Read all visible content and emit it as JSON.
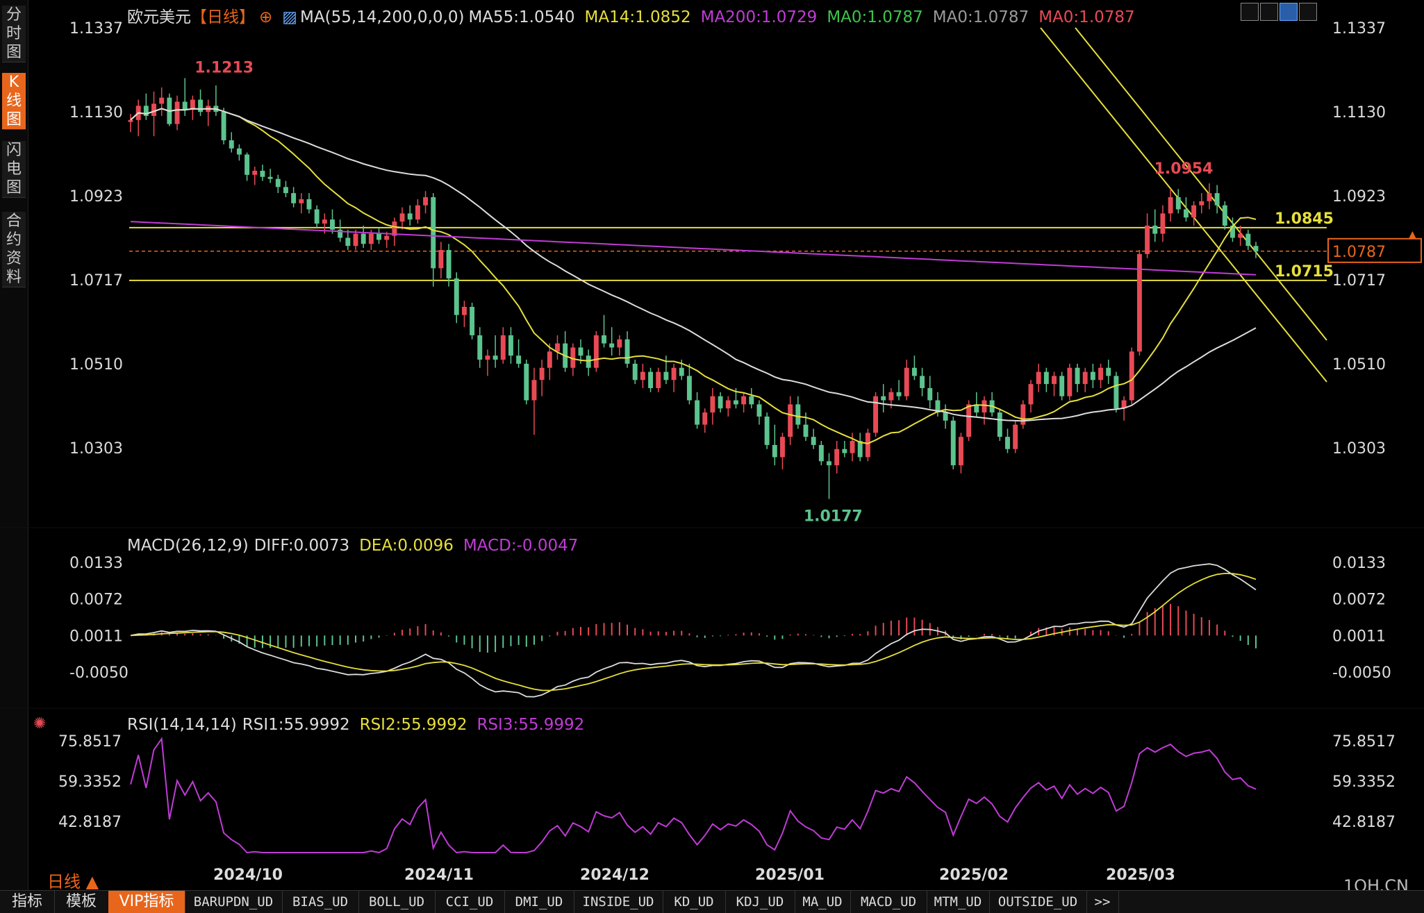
{
  "sidebar": {
    "tabs": [
      {
        "label": "分时图",
        "active": false
      },
      {
        "label": "K线图",
        "active": true
      },
      {
        "label": "闪电图",
        "active": false
      },
      {
        "label": "合约资料",
        "active": false
      }
    ]
  },
  "header": {
    "symbol": "欧元美元",
    "period_tag": "【日线】",
    "ma_params": "MA(55,14,200,0,0,0)",
    "ma55": "MA55:1.0540",
    "ma14": "MA14:1.0852",
    "ma200": "MA200:1.0729",
    "ma0_a": "MA0:1.0787",
    "ma0_b": "MA0:1.0787",
    "ma0_c": "MA0:1.0787"
  },
  "toolbar": {
    "icons": [
      "grid-icon",
      "bars-icon",
      "draw-icon",
      "export-icon"
    ]
  },
  "colors": {
    "up": "#e84a55",
    "down": "#5cc48e",
    "ma14": "#e6df3c",
    "ma55": "#dddddd",
    "ma200": "#c03cd6",
    "orange": "#e8661c",
    "ma0_green": "#3cc44a",
    "ma0_grey": "#999999",
    "ma0_red": "#e84a55"
  },
  "price_axis": {
    "ticks": [
      "1.1337",
      "1.1130",
      "1.0923",
      "1.0717",
      "1.0510",
      "1.0303"
    ],
    "current_price": "1.0787"
  },
  "annotations": {
    "high": "1.1213",
    "low": "1.0177",
    "recent_high": "1.0954",
    "level_upper": "1.0845",
    "level_lower": "1.0715"
  },
  "macd": {
    "title": "MACD(26,12,9)",
    "diff": "DIFF:0.0073",
    "dea": "DEA:0.0096",
    "macd": "MACD:-0.0047",
    "ticks": [
      "0.0133",
      "0.0072",
      "0.0011",
      "-0.0050"
    ]
  },
  "rsi": {
    "title": "RSI(14,14,14)",
    "rsi1": "RSI1:55.9992",
    "rsi2": "RSI2:55.9992",
    "rsi3": "RSI3:55.9992",
    "ticks": [
      "75.8517",
      "59.3352",
      "42.8187"
    ]
  },
  "x_axis": {
    "labels": [
      "2024/10",
      "2024/11",
      "2024/12",
      "2025/01",
      "2025/02",
      "2025/03"
    ]
  },
  "footer": {
    "period": "日线 ▲",
    "watermark": "1QH.CN",
    "tabs": [
      {
        "label": "指标",
        "active": false,
        "cn": true
      },
      {
        "label": "模板",
        "active": false,
        "cn": true
      },
      {
        "label": "VIP指标",
        "active": true,
        "cn": true
      },
      {
        "label": "BARUPDN_UD",
        "active": false
      },
      {
        "label": "BIAS_UD",
        "active": false
      },
      {
        "label": "BOLL_UD",
        "active": false
      },
      {
        "label": "CCI_UD",
        "active": false
      },
      {
        "label": "DMI_UD",
        "active": false
      },
      {
        "label": "INSIDE_UD",
        "active": false
      },
      {
        "label": "KD_UD",
        "active": false
      },
      {
        "label": "KDJ_UD",
        "active": false
      },
      {
        "label": "MA_UD",
        "active": false
      },
      {
        "label": "MACD_UD",
        "active": false
      },
      {
        "label": "MTM_UD",
        "active": false
      },
      {
        "label": "OUTSIDE_UD",
        "active": false
      },
      {
        "label": ">>",
        "active": false
      }
    ]
  },
  "chart_data": {
    "type": "candlestick",
    "instrument": "欧元美元",
    "price_range": [
      1.0177,
      1.1337
    ],
    "candles": [
      [
        1.1105,
        1.1125,
        1.108,
        1.111
      ],
      [
        1.111,
        1.116,
        1.107,
        1.1145
      ],
      [
        1.1145,
        1.1175,
        1.111,
        1.112
      ],
      [
        1.112,
        1.118,
        1.107,
        1.115
      ],
      [
        1.115,
        1.119,
        1.112,
        1.1165
      ],
      [
        1.1165,
        1.1175,
        1.1095,
        1.11
      ],
      [
        1.11,
        1.117,
        1.1085,
        1.1155
      ],
      [
        1.1155,
        1.1213,
        1.112,
        1.1135
      ],
      [
        1.1135,
        1.117,
        1.111,
        1.116
      ],
      [
        1.116,
        1.1185,
        1.112,
        1.113
      ],
      [
        1.113,
        1.116,
        1.1095,
        1.1145
      ],
      [
        1.1145,
        1.1195,
        1.112,
        1.113
      ],
      [
        1.113,
        1.114,
        1.105,
        1.106
      ],
      [
        1.106,
        1.108,
        1.103,
        1.104
      ],
      [
        1.104,
        1.105,
        1.101,
        1.1025
      ],
      [
        1.1025,
        1.103,
        1.096,
        1.0975
      ],
      [
        1.0975,
        1.0995,
        1.095,
        1.0985
      ],
      [
        1.0985,
        1.1,
        1.096,
        1.097
      ],
      [
        1.097,
        1.099,
        1.0955,
        1.0965
      ],
      [
        1.0965,
        1.0975,
        1.093,
        1.0945
      ],
      [
        1.0945,
        1.096,
        1.092,
        1.093
      ],
      [
        1.093,
        1.0945,
        1.0895,
        1.0905
      ],
      [
        1.0905,
        1.093,
        1.088,
        1.0915
      ],
      [
        1.0915,
        1.093,
        1.088,
        1.089
      ],
      [
        1.089,
        1.09,
        1.0845,
        1.0855
      ],
      [
        1.0855,
        1.088,
        1.083,
        1.0865
      ],
      [
        1.0865,
        1.089,
        1.083,
        1.084
      ],
      [
        1.084,
        1.0865,
        1.081,
        1.082
      ],
      [
        1.082,
        1.084,
        1.079,
        1.08
      ],
      [
        1.08,
        1.084,
        1.079,
        1.083
      ],
      [
        1.083,
        1.085,
        1.0795,
        1.0805
      ],
      [
        1.0805,
        1.084,
        1.079,
        1.083
      ],
      [
        1.083,
        1.0845,
        1.0805,
        1.0815
      ],
      [
        1.0815,
        1.0835,
        1.0795,
        1.0825
      ],
      [
        1.0825,
        1.087,
        1.08,
        1.086
      ],
      [
        1.086,
        1.0895,
        1.084,
        1.088
      ],
      [
        1.088,
        1.09,
        1.085,
        1.0865
      ],
      [
        1.0865,
        1.0915,
        1.0855,
        1.09
      ],
      [
        1.09,
        1.0935,
        1.088,
        1.092
      ],
      [
        1.092,
        1.093,
        1.07,
        1.0745
      ],
      [
        1.0745,
        1.081,
        1.072,
        1.079
      ],
      [
        1.079,
        1.0805,
        1.07,
        1.072
      ],
      [
        1.072,
        1.0735,
        1.061,
        1.063
      ],
      [
        1.063,
        1.0665,
        1.06,
        1.065
      ],
      [
        1.065,
        1.066,
        1.057,
        1.058
      ],
      [
        1.058,
        1.06,
        1.05,
        1.052
      ],
      [
        1.052,
        1.0545,
        1.048,
        1.053
      ],
      [
        1.053,
        1.058,
        1.05,
        1.052
      ],
      [
        1.052,
        1.06,
        1.051,
        1.058
      ],
      [
        1.058,
        1.06,
        1.051,
        1.053
      ],
      [
        1.053,
        1.057,
        1.05,
        1.051
      ],
      [
        1.051,
        1.052,
        1.041,
        1.042
      ],
      [
        1.042,
        1.05,
        1.0335,
        1.047
      ],
      [
        1.047,
        1.052,
        1.043,
        1.05
      ],
      [
        1.05,
        1.056,
        1.047,
        1.054
      ],
      [
        1.054,
        1.058,
        1.052,
        1.056
      ],
      [
        1.056,
        1.059,
        1.049,
        1.05
      ],
      [
        1.05,
        1.056,
        1.048,
        1.055
      ],
      [
        1.055,
        1.057,
        1.051,
        1.053
      ],
      [
        1.053,
        1.0545,
        1.048,
        1.05
      ],
      [
        1.05,
        1.059,
        1.049,
        1.058
      ],
      [
        1.058,
        1.063,
        1.055,
        1.056
      ],
      [
        1.056,
        1.06,
        1.053,
        1.055
      ],
      [
        1.055,
        1.058,
        1.053,
        1.057
      ],
      [
        1.057,
        1.059,
        1.05,
        1.051
      ],
      [
        1.051,
        1.052,
        1.046,
        1.047
      ],
      [
        1.047,
        1.051,
        1.045,
        1.049
      ],
      [
        1.049,
        1.05,
        1.044,
        1.045
      ],
      [
        1.045,
        1.05,
        1.044,
        1.049
      ],
      [
        1.049,
        1.053,
        1.046,
        1.047
      ],
      [
        1.047,
        1.051,
        1.044,
        1.05
      ],
      [
        1.05,
        1.052,
        1.047,
        1.048
      ],
      [
        1.048,
        1.051,
        1.041,
        1.042
      ],
      [
        1.042,
        1.044,
        1.035,
        1.036
      ],
      [
        1.036,
        1.04,
        1.034,
        1.039
      ],
      [
        1.039,
        1.045,
        1.036,
        1.043
      ],
      [
        1.043,
        1.044,
        1.039,
        1.04
      ],
      [
        1.04,
        1.043,
        1.038,
        1.042
      ],
      [
        1.042,
        1.045,
        1.04,
        1.041
      ],
      [
        1.041,
        1.044,
        1.039,
        1.043
      ],
      [
        1.043,
        1.045,
        1.04,
        1.041
      ],
      [
        1.041,
        1.042,
        1.036,
        1.038
      ],
      [
        1.038,
        1.039,
        1.03,
        1.031
      ],
      [
        1.031,
        1.036,
        1.026,
        1.028
      ],
      [
        1.028,
        1.034,
        1.025,
        1.033
      ],
      [
        1.033,
        1.043,
        1.031,
        1.041
      ],
      [
        1.041,
        1.043,
        1.035,
        1.036
      ],
      [
        1.036,
        1.039,
        1.032,
        1.033
      ],
      [
        1.033,
        1.035,
        1.03,
        1.031
      ],
      [
        1.031,
        1.032,
        1.026,
        1.027
      ],
      [
        1.027,
        1.029,
        1.0177,
        1.026
      ],
      [
        1.026,
        1.032,
        1.024,
        1.03
      ],
      [
        1.03,
        1.032,
        1.028,
        1.029
      ],
      [
        1.029,
        1.034,
        1.027,
        1.032
      ],
      [
        1.032,
        1.034,
        1.027,
        1.028
      ],
      [
        1.028,
        1.035,
        1.027,
        1.034
      ],
      [
        1.034,
        1.044,
        1.033,
        1.043
      ],
      [
        1.043,
        1.046,
        1.039,
        1.042
      ],
      [
        1.042,
        1.045,
        1.04,
        1.044
      ],
      [
        1.044,
        1.047,
        1.042,
        1.043
      ],
      [
        1.043,
        1.052,
        1.042,
        1.05
      ],
      [
        1.05,
        1.053,
        1.047,
        1.048
      ],
      [
        1.048,
        1.05,
        1.043,
        1.045
      ],
      [
        1.045,
        1.048,
        1.04,
        1.042
      ],
      [
        1.042,
        1.044,
        1.038,
        1.039
      ],
      [
        1.039,
        1.041,
        1.035,
        1.037
      ],
      [
        1.037,
        1.038,
        1.025,
        1.026
      ],
      [
        1.026,
        1.034,
        1.024,
        1.033
      ],
      [
        1.033,
        1.042,
        1.032,
        1.041
      ],
      [
        1.041,
        1.044,
        1.038,
        1.039
      ],
      [
        1.039,
        1.043,
        1.036,
        1.042
      ],
      [
        1.042,
        1.044,
        1.038,
        1.039
      ],
      [
        1.039,
        1.04,
        1.032,
        1.033
      ],
      [
        1.033,
        1.035,
        1.029,
        1.03
      ],
      [
        1.03,
        1.037,
        1.029,
        1.036
      ],
      [
        1.036,
        1.042,
        1.035,
        1.041
      ],
      [
        1.041,
        1.047,
        1.039,
        1.046
      ],
      [
        1.046,
        1.051,
        1.044,
        1.049
      ],
      [
        1.049,
        1.05,
        1.044,
        1.046
      ],
      [
        1.046,
        1.049,
        1.043,
        1.048
      ],
      [
        1.048,
        1.049,
        1.042,
        1.043
      ],
      [
        1.043,
        1.051,
        1.042,
        1.05
      ],
      [
        1.05,
        1.051,
        1.044,
        1.046
      ],
      [
        1.046,
        1.05,
        1.044,
        1.049
      ],
      [
        1.049,
        1.051,
        1.045,
        1.047
      ],
      [
        1.047,
        1.051,
        1.045,
        1.05
      ],
      [
        1.05,
        1.052,
        1.046,
        1.048
      ],
      [
        1.048,
        1.049,
        1.039,
        1.04
      ],
      [
        1.04,
        1.043,
        1.037,
        1.042
      ],
      [
        1.042,
        1.055,
        1.041,
        1.054
      ],
      [
        1.054,
        1.079,
        1.053,
        1.078
      ],
      [
        1.078,
        1.088,
        1.077,
        1.085
      ],
      [
        1.085,
        1.089,
        1.081,
        1.083
      ],
      [
        1.083,
        1.09,
        1.081,
        1.088
      ],
      [
        1.088,
        1.094,
        1.086,
        1.092
      ],
      [
        1.092,
        1.094,
        1.088,
        1.089
      ],
      [
        1.089,
        1.092,
        1.086,
        1.087
      ],
      [
        1.087,
        1.091,
        1.085,
        1.09
      ],
      [
        1.09,
        1.093,
        1.088,
        1.091
      ],
      [
        1.091,
        1.0954,
        1.089,
        1.093
      ],
      [
        1.093,
        1.095,
        1.088,
        1.09
      ],
      [
        1.09,
        1.091,
        1.084,
        1.085
      ],
      [
        1.085,
        1.087,
        1.081,
        1.082
      ],
      [
        1.082,
        1.085,
        1.08,
        1.083
      ],
      [
        1.083,
        1.084,
        1.079,
        1.08
      ],
      [
        1.08,
        1.081,
        1.077,
        1.0787
      ]
    ],
    "ma14_last": 1.0852,
    "ma55_last": 1.054,
    "ma200_last": 1.0729,
    "horizontal_levels": [
      1.0845,
      1.0715,
      1.0787
    ],
    "macd_range": [
      -0.005,
      0.0133
    ],
    "rsi_range": [
      42.8187,
      75.8517
    ],
    "x_labels": [
      "2024/10",
      "2024/11",
      "2024/12",
      "2025/01",
      "2025/02",
      "2025/03"
    ]
  }
}
